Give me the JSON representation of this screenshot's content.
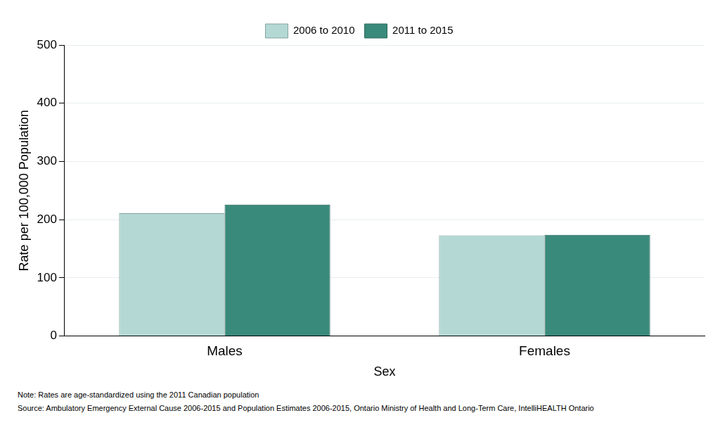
{
  "chart_data": {
    "type": "bar",
    "categories": [
      "Males",
      "Females"
    ],
    "series": [
      {
        "name": "2006 to 2010",
        "color": "#b4d9d5",
        "values": [
          211,
          173
        ]
      },
      {
        "name": "2011 to 2015",
        "color": "#3a8a7b",
        "values": [
          226,
          174
        ]
      }
    ],
    "x_label": "Sex",
    "y_label": "Rate per 100,000 Population",
    "ylim": [
      0,
      500
    ],
    "yticks": [
      0,
      100,
      200,
      300,
      400,
      500
    ],
    "grid": true,
    "legend": "top",
    "annotations": [
      "Note: Rates are age-standardized using the 2011 Canadian population",
      "Source: Ambulatory Emergency External Cause 2006-2015 and Population Estimates 2006-2015, Ontario Ministry of Health and Long-Term Care, IntelliHEALTH Ontario"
    ]
  }
}
